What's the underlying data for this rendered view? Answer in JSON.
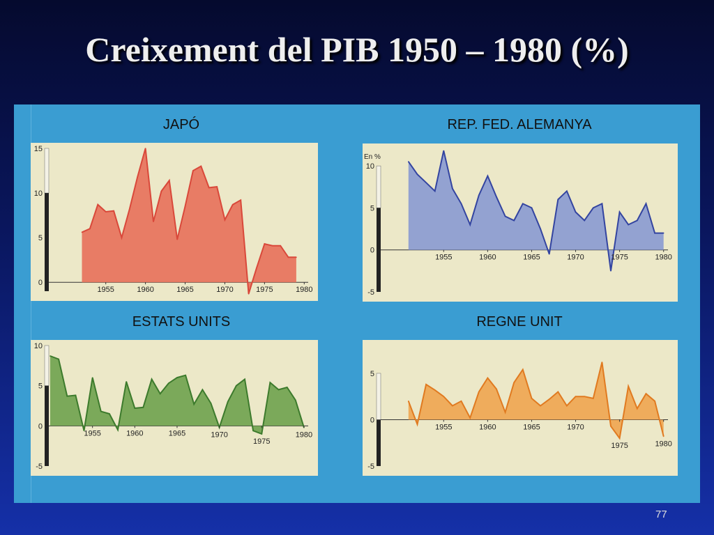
{
  "slide": {
    "title": "Creixement del PIB 1950 – 1980 (%)",
    "page_number": "77"
  },
  "chart_data": [
    {
      "type": "area",
      "title": "JAPÓ",
      "color": "#e8705a",
      "line_color": "#d9483a",
      "ylim": [
        -1,
        15
      ],
      "yticks": [
        0,
        5,
        10,
        15
      ],
      "xlim": [
        1948,
        1980.5
      ],
      "xticks": [
        1955,
        1960,
        1965,
        1970,
        1975,
        1980
      ],
      "unit_label": "",
      "x": [
        1952,
        1953,
        1954,
        1955,
        1956,
        1957,
        1958,
        1959,
        1960,
        1961,
        1962,
        1963,
        1964,
        1965,
        1966,
        1967,
        1968,
        1969,
        1970,
        1971,
        1972,
        1973,
        1974,
        1975,
        1976,
        1977,
        1978,
        1979
      ],
      "values": [
        5.6,
        6.0,
        8.7,
        7.9,
        8.0,
        5.0,
        8.2,
        11.8,
        15.0,
        6.8,
        10.2,
        11.4,
        4.8,
        8.5,
        12.5,
        13.0,
        10.6,
        10.7,
        7.0,
        8.7,
        9.2,
        -1.3,
        1.6,
        4.3,
        4.1,
        4.1,
        2.8,
        2.8
      ]
    },
    {
      "type": "area",
      "title": "REP. FED. ALEMANYA",
      "color": "#8a9ad2",
      "line_color": "#3344a0",
      "ylim": [
        -5,
        12
      ],
      "yticks": [
        -5,
        0,
        5,
        10
      ],
      "xlim": [
        1948,
        1980.5
      ],
      "xticks": [
        1955,
        1960,
        1965,
        1970,
        1975,
        1980
      ],
      "unit_label": "En %",
      "x": [
        1951,
        1952,
        1953,
        1954,
        1955,
        1956,
        1957,
        1958,
        1959,
        1960,
        1961,
        1962,
        1963,
        1964,
        1965,
        1966,
        1967,
        1968,
        1969,
        1970,
        1971,
        1972,
        1973,
        1974,
        1975,
        1976,
        1977,
        1978,
        1979,
        1980
      ],
      "values": [
        10.5,
        9.0,
        8.0,
        7.0,
        11.8,
        7.3,
        5.5,
        3.0,
        6.5,
        8.8,
        6.3,
        4.0,
        3.5,
        5.5,
        5.0,
        2.5,
        -0.5,
        6.0,
        7.0,
        4.5,
        3.5,
        5.0,
        5.5,
        -2.5,
        4.5,
        3.0,
        3.5,
        5.5,
        2.0,
        2.0
      ]
    },
    {
      "type": "area",
      "title": "ESTATS UNITS",
      "color": "#6fa24e",
      "line_color": "#3c7a2c",
      "ylim": [
        -5,
        10
      ],
      "yticks": [
        -5,
        0,
        5,
        10
      ],
      "xlim": [
        1950,
        1980.5
      ],
      "xticks": [
        1955,
        1960,
        1965,
        1970,
        1975,
        1980
      ],
      "unit_label": "",
      "x": [
        1950,
        1951,
        1952,
        1953,
        1954,
        1955,
        1956,
        1957,
        1958,
        1959,
        1960,
        1961,
        1962,
        1963,
        1964,
        1965,
        1966,
        1967,
        1968,
        1969,
        1970,
        1971,
        1972,
        1973,
        1974,
        1975,
        1976,
        1977,
        1978,
        1979,
        1980
      ],
      "values": [
        8.7,
        8.3,
        3.7,
        3.8,
        -0.6,
        6.0,
        1.8,
        1.5,
        -0.5,
        5.5,
        2.2,
        2.3,
        5.8,
        4.0,
        5.3,
        6.0,
        6.3,
        2.7,
        4.5,
        2.8,
        -0.2,
        3.0,
        5.0,
        5.8,
        -0.6,
        -1.0,
        5.4,
        4.5,
        4.8,
        3.2,
        -0.2
      ]
    },
    {
      "type": "area",
      "title": "REGNE UNIT",
      "color": "#f0a550",
      "line_color": "#e07a20",
      "ylim": [
        -5,
        8
      ],
      "yticks": [
        -5,
        0,
        5
      ],
      "xlim": [
        1948,
        1980.5
      ],
      "xticks": [
        1955,
        1960,
        1965,
        1970,
        1975,
        1980
      ],
      "unit_label": "",
      "x": [
        1951,
        1952,
        1953,
        1954,
        1955,
        1956,
        1957,
        1958,
        1959,
        1960,
        1961,
        1962,
        1963,
        1964,
        1965,
        1966,
        1967,
        1968,
        1969,
        1970,
        1971,
        1972,
        1973,
        1974,
        1975,
        1976,
        1977,
        1978,
        1979,
        1980
      ],
      "values": [
        2.0,
        -0.5,
        3.8,
        3.2,
        2.5,
        1.5,
        2.0,
        0.2,
        3.0,
        4.5,
        3.3,
        0.8,
        4.0,
        5.4,
        2.3,
        1.5,
        2.2,
        3.0,
        1.5,
        2.5,
        2.5,
        2.3,
        6.2,
        -0.7,
        -2.0,
        3.6,
        1.2,
        2.8,
        2.0,
        -1.8
      ]
    }
  ]
}
